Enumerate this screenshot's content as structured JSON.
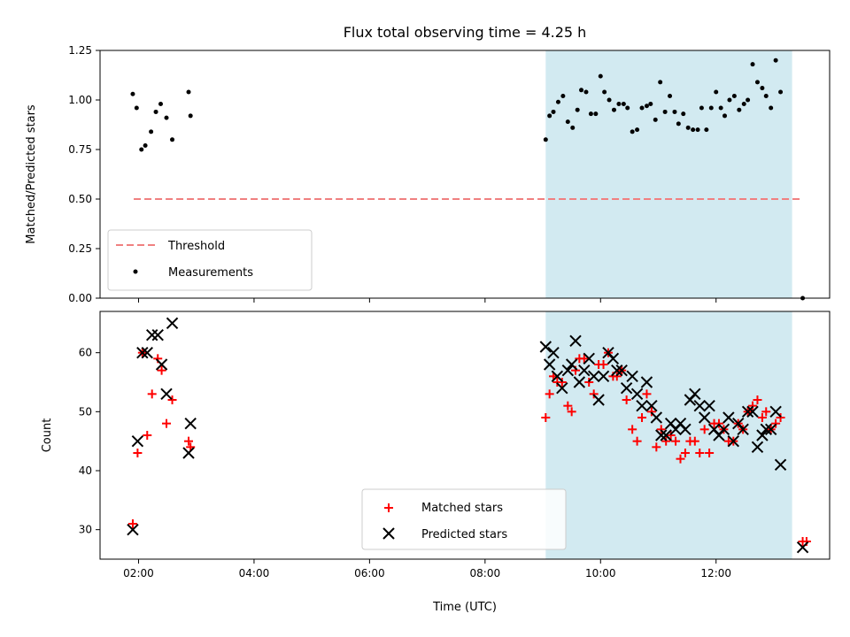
{
  "chart_data": [
    {
      "type": "scatter",
      "title": "Flux total observing time = 4.25 h",
      "ylabel": "Matched/Predicted stars",
      "ylim": [
        0,
        1.25
      ],
      "yticks": [
        "0.00",
        "0.25",
        "0.50",
        "0.75",
        "1.00",
        "1.25"
      ],
      "xlim": [
        "01:20",
        "13:58"
      ],
      "shaded_interval": [
        "09:03",
        "13:19"
      ],
      "shaded_color": "#add8e6",
      "legend_position": "lower-left",
      "threshold": {
        "name": "Threshold",
        "y": 0.5,
        "x_range": [
          "01:55",
          "13:30"
        ],
        "color": "#f08080",
        "style": "dashed"
      },
      "series": [
        {
          "name": "Measurements",
          "color": "#000000",
          "marker": "dot",
          "points": [
            [
              "01:54",
              1.03
            ],
            [
              "01:58",
              0.96
            ],
            [
              "02:03",
              0.75
            ],
            [
              "02:07",
              0.77
            ],
            [
              "02:13",
              0.84
            ],
            [
              "02:18",
              0.94
            ],
            [
              "02:23",
              0.98
            ],
            [
              "02:29",
              0.91
            ],
            [
              "02:35",
              0.8
            ],
            [
              "02:52",
              1.04
            ],
            [
              "02:54",
              0.92
            ],
            [
              "09:03",
              0.8
            ],
            [
              "09:07",
              0.92
            ],
            [
              "09:11",
              0.94
            ],
            [
              "09:16",
              0.99
            ],
            [
              "09:21",
              1.02
            ],
            [
              "09:26",
              0.89
            ],
            [
              "09:31",
              0.86
            ],
            [
              "09:36",
              0.95
            ],
            [
              "09:40",
              1.05
            ],
            [
              "09:45",
              1.04
            ],
            [
              "09:50",
              0.93
            ],
            [
              "09:55",
              0.93
            ],
            [
              "10:00",
              1.12
            ],
            [
              "10:04",
              1.04
            ],
            [
              "10:09",
              1.0
            ],
            [
              "10:14",
              0.95
            ],
            [
              "10:19",
              0.98
            ],
            [
              "10:24",
              0.98
            ],
            [
              "10:28",
              0.96
            ],
            [
              "10:33",
              0.84
            ],
            [
              "10:38",
              0.85
            ],
            [
              "10:43",
              0.96
            ],
            [
              "10:48",
              0.97
            ],
            [
              "10:52",
              0.98
            ],
            [
              "10:57",
              0.9
            ],
            [
              "11:02",
              1.09
            ],
            [
              "11:07",
              0.94
            ],
            [
              "11:12",
              1.02
            ],
            [
              "11:17",
              0.94
            ],
            [
              "11:21",
              0.88
            ],
            [
              "11:26",
              0.93
            ],
            [
              "11:31",
              0.86
            ],
            [
              "11:36",
              0.85
            ],
            [
              "11:41",
              0.85
            ],
            [
              "11:45",
              0.96
            ],
            [
              "11:50",
              0.85
            ],
            [
              "11:55",
              0.96
            ],
            [
              "12:00",
              1.04
            ],
            [
              "12:05",
              0.96
            ],
            [
              "12:09",
              0.92
            ],
            [
              "12:14",
              1.0
            ],
            [
              "12:19",
              1.02
            ],
            [
              "12:24",
              0.95
            ],
            [
              "12:29",
              0.98
            ],
            [
              "12:33",
              1.0
            ],
            [
              "12:38",
              1.18
            ],
            [
              "12:43",
              1.09
            ],
            [
              "12:48",
              1.06
            ],
            [
              "12:52",
              1.02
            ],
            [
              "12:57",
              0.96
            ],
            [
              "13:02",
              1.2
            ],
            [
              "13:07",
              1.04
            ],
            [
              "13:30",
              0.0
            ]
          ]
        }
      ]
    },
    {
      "type": "scatter",
      "ylabel": "Count",
      "xlabel": "Time (UTC)",
      "ylim": [
        25,
        67
      ],
      "yticks": [
        "30",
        "40",
        "50",
        "60"
      ],
      "xlim": [
        "01:20",
        "13:58"
      ],
      "xticks": [
        "02:00",
        "04:00",
        "06:00",
        "08:00",
        "10:00",
        "12:00"
      ],
      "shaded_interval": [
        "09:03",
        "13:19"
      ],
      "shaded_color": "#add8e6",
      "legend_position": "lower-center",
      "series": [
        {
          "name": "Matched stars",
          "color": "#ff0000",
          "marker": "plus",
          "points": [
            [
              "01:54",
              31
            ],
            [
              "01:59",
              43
            ],
            [
              "02:04",
              60
            ],
            [
              "02:09",
              46
            ],
            [
              "02:14",
              53
            ],
            [
              "02:20",
              59
            ],
            [
              "02:24",
              57
            ],
            [
              "02:29",
              48
            ],
            [
              "02:35",
              52
            ],
            [
              "02:52",
              45
            ],
            [
              "02:54",
              44
            ],
            [
              "09:03",
              49
            ],
            [
              "09:07",
              53
            ],
            [
              "09:11",
              56
            ],
            [
              "09:15",
              55
            ],
            [
              "09:20",
              55
            ],
            [
              "09:26",
              51
            ],
            [
              "09:30",
              50
            ],
            [
              "09:34",
              57
            ],
            [
              "09:38",
              59
            ],
            [
              "09:43",
              59
            ],
            [
              "09:48",
              55
            ],
            [
              "09:53",
              53
            ],
            [
              "09:58",
              58
            ],
            [
              "10:03",
              58
            ],
            [
              "10:08",
              60
            ],
            [
              "10:13",
              56
            ],
            [
              "10:17",
              56
            ],
            [
              "10:22",
              57
            ],
            [
              "10:27",
              52
            ],
            [
              "10:33",
              47
            ],
            [
              "10:38",
              45
            ],
            [
              "10:43",
              49
            ],
            [
              "10:48",
              53
            ],
            [
              "10:53",
              50
            ],
            [
              "10:58",
              44
            ],
            [
              "11:03",
              47
            ],
            [
              "11:08",
              45
            ],
            [
              "11:13",
              46
            ],
            [
              "11:18",
              45
            ],
            [
              "11:23",
              42
            ],
            [
              "11:28",
              43
            ],
            [
              "11:33",
              45
            ],
            [
              "11:38",
              45
            ],
            [
              "11:43",
              43
            ],
            [
              "11:48",
              47
            ],
            [
              "11:53",
              43
            ],
            [
              "11:58",
              48
            ],
            [
              "12:03",
              48
            ],
            [
              "12:08",
              47
            ],
            [
              "12:13",
              45
            ],
            [
              "12:18",
              45
            ],
            [
              "12:23",
              48
            ],
            [
              "12:28",
              47
            ],
            [
              "12:33",
              50
            ],
            [
              "12:38",
              51
            ],
            [
              "12:43",
              52
            ],
            [
              "12:48",
              49
            ],
            [
              "12:52",
              50
            ],
            [
              "12:57",
              47
            ],
            [
              "13:02",
              48
            ],
            [
              "13:07",
              49
            ],
            [
              "13:30",
              28
            ],
            [
              "13:34",
              28
            ]
          ]
        },
        {
          "name": "Predicted stars",
          "color": "#000000",
          "marker": "x",
          "points": [
            [
              "01:54",
              30
            ],
            [
              "01:59",
              45
            ],
            [
              "02:04",
              60
            ],
            [
              "02:09",
              60
            ],
            [
              "02:14",
              63
            ],
            [
              "02:20",
              63
            ],
            [
              "02:24",
              58
            ],
            [
              "02:29",
              53
            ],
            [
              "02:35",
              65
            ],
            [
              "02:52",
              43
            ],
            [
              "02:54",
              48
            ],
            [
              "09:03",
              61
            ],
            [
              "09:07",
              58
            ],
            [
              "09:11",
              60
            ],
            [
              "09:15",
              56
            ],
            [
              "09:20",
              54
            ],
            [
              "09:26",
              57
            ],
            [
              "09:30",
              58
            ],
            [
              "09:34",
              62
            ],
            [
              "09:38",
              55
            ],
            [
              "09:43",
              57
            ],
            [
              "09:48",
              59
            ],
            [
              "09:53",
              56
            ],
            [
              "09:58",
              52
            ],
            [
              "10:03",
              56
            ],
            [
              "10:08",
              60
            ],
            [
              "10:13",
              59
            ],
            [
              "10:17",
              57
            ],
            [
              "10:22",
              57
            ],
            [
              "10:27",
              54
            ],
            [
              "10:33",
              56
            ],
            [
              "10:38",
              53
            ],
            [
              "10:43",
              51
            ],
            [
              "10:48",
              55
            ],
            [
              "10:53",
              51
            ],
            [
              "10:58",
              49
            ],
            [
              "11:03",
              46
            ],
            [
              "11:08",
              46
            ],
            [
              "11:13",
              48
            ],
            [
              "11:18",
              47
            ],
            [
              "11:23",
              48
            ],
            [
              "11:28",
              47
            ],
            [
              "11:33",
              52
            ],
            [
              "11:38",
              53
            ],
            [
              "11:43",
              51
            ],
            [
              "11:48",
              49
            ],
            [
              "11:53",
              51
            ],
            [
              "11:58",
              47
            ],
            [
              "12:03",
              46
            ],
            [
              "12:08",
              47
            ],
            [
              "12:13",
              49
            ],
            [
              "12:18",
              45
            ],
            [
              "12:23",
              48
            ],
            [
              "12:28",
              47
            ],
            [
              "12:33",
              50
            ],
            [
              "12:38",
              50
            ],
            [
              "12:43",
              44
            ],
            [
              "12:48",
              46
            ],
            [
              "12:52",
              47
            ],
            [
              "12:57",
              47
            ],
            [
              "13:02",
              50
            ],
            [
              "13:07",
              41
            ],
            [
              "13:30",
              27
            ]
          ]
        }
      ]
    }
  ]
}
